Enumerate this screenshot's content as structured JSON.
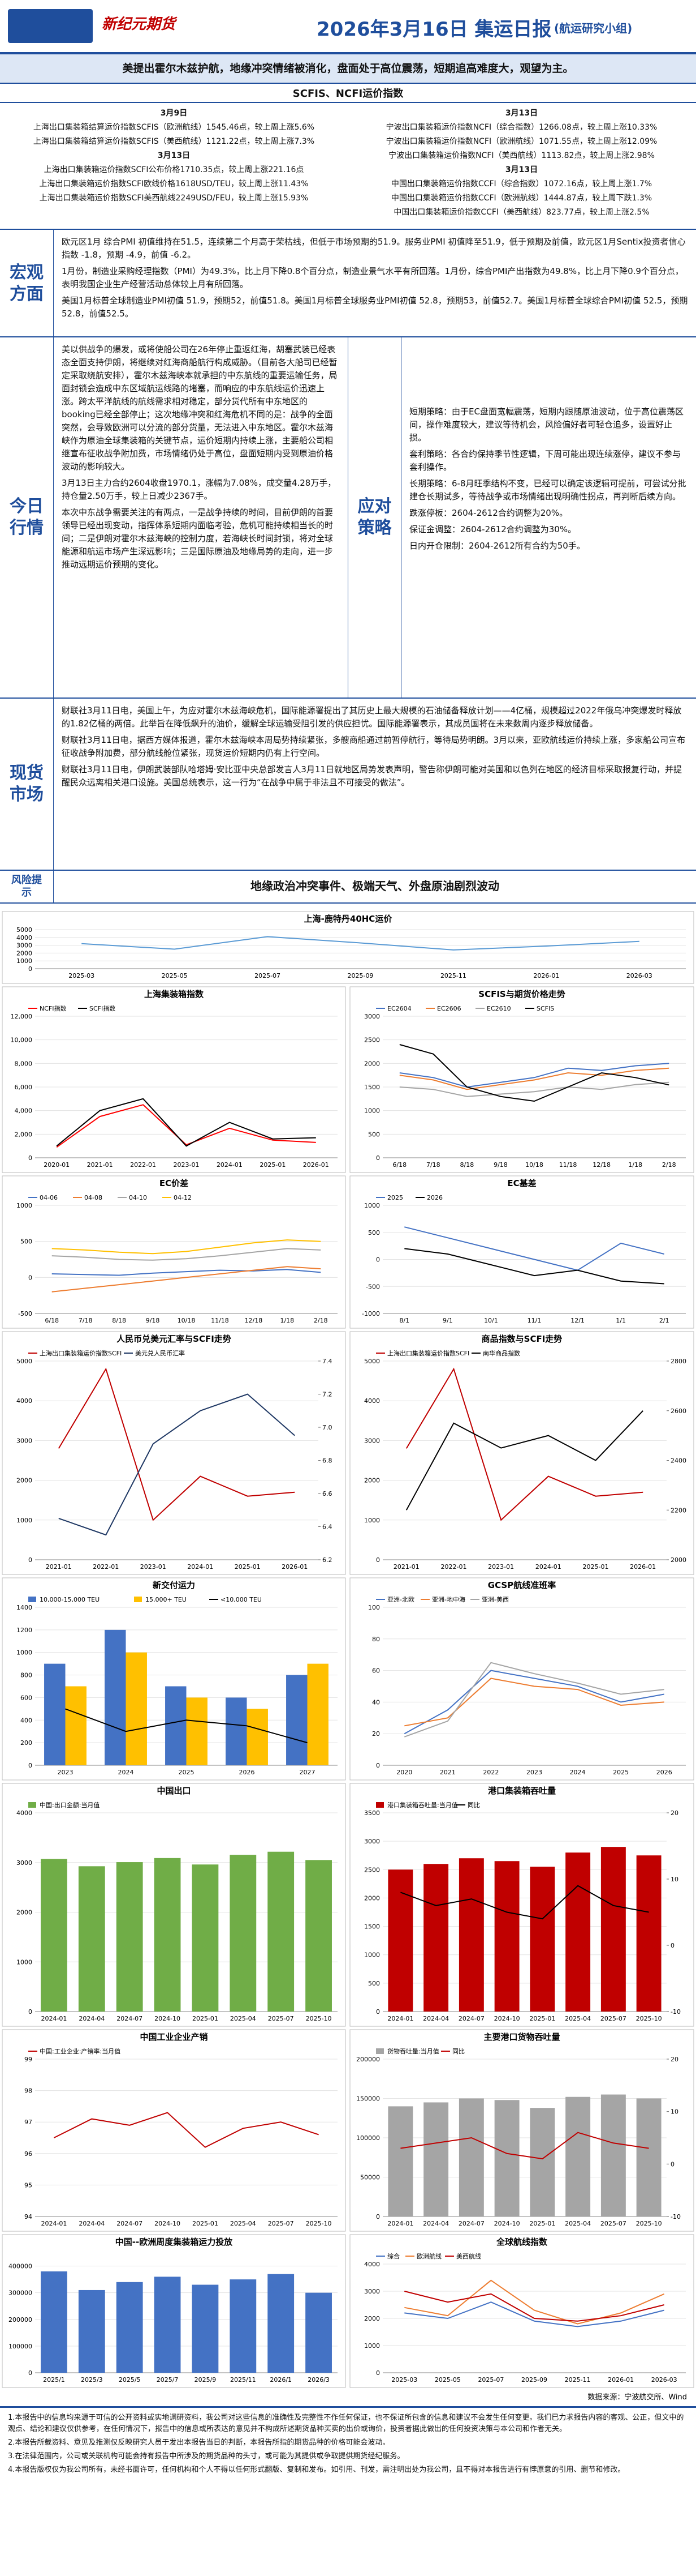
{
  "header": {
    "logo_text": "新纪元期货",
    "title": "2026年3月16日 集运日报",
    "group": "(航运研究小组)",
    "summary": "美提出霍尔木兹护航，地缘冲突情绪被消化，盘面处于高位震荡，短期追高难度大，观望为主。"
  },
  "index_panel": {
    "title": "SCFIS、NCFI运价指数",
    "left": [
      "3月9日",
      "上海出口集装箱结算运价指数SCFIS（欧洲航线）1545.46点，较上周上涨5.6%",
      "上海出口集装箱结算运价指数SCFIS（美西航线）1121.22点，较上周上涨7.3%",
      "3月13日",
      "上海出口集装箱运价指数SCFI公布价格1710.35点，较上周上涨221.16点",
      "上海出口集装箱运价指数SCFI欧线价格1618USD/TEU，较上周上涨11.43%",
      "上海出口集装箱运价指数SCFI美西航线2249USD/FEU，较上周上涨15.93%"
    ],
    "right": [
      "3月13日",
      "宁波出口集装箱运价指数NCFI（综合指数）1266.08点，较上周上涨10.33%",
      "宁波出口集装箱运价指数NCFI（欧洲航线）1071.55点，较上周上涨12.09%",
      "宁波出口集装箱运价指数NCFI（美西航线）1113.82点，较上周上涨2.98%",
      "3月13日",
      "中国出口集装箱运价指数CCFI（综合指数）1072.16点，较上周上涨1.7%",
      "中国出口集装箱运价指数CCFI（欧洲航线）1444.87点，较上周下跌1.3%",
      "中国出口集装箱运价指数CCFI（美西航线）823.77点，较上周上涨2.5%"
    ]
  },
  "macro": {
    "label": "宏观方面",
    "paragraphs": [
      "欧元区1月 综合PMI 初值维持在51.5，连续第二个月高于荣枯线，但低于市场预期的51.9。服务业PMI 初值降至51.9，低于预期及前值，欧元区1月Sentix投资者信心指数 -1.8，预期 -4.9，前值 -6.2。",
      "1月份，制造业采购经理指数（PMI）为49.3%，比上月下降0.8个百分点，制造业景气水平有所回落。1月份，综合PMI产出指数为49.8%，比上月下降0.9个百分点，表明我国企业生产经营活动总体较上月有所回落。",
      "美国1月标普全球制造业PMI初值 51.9，预期52，前值51.8。美国1月标普全球服务业PMI初值 52.8，预期53，前值52.7。美国1月标普全球综合PMI初值 52.5，预期52.8，前值52.5。"
    ]
  },
  "market": {
    "label": "今日行情",
    "paragraphs": [
      "美以供战争的爆发，或将使船公司在26年停止重返红海，胡塞武装已经表态全面支持伊朗，将继续对红海商船航行构成威胁。（目前各大船司已经暂定采取绕航安排），霍尔木兹海峡本就承担的中东航线的重要运输任务，局面封锁会造成中东区域航运线路的堵塞，而响应的中东航线运价迅速上涨。跨太平洋航线的航线需求相对稳定，部分货代所有中东地区的booking已经全部停止；这次地缘冲突和红海危机不同的是：战争的全面突然，会导致欧洲可以分流的部分货量，无法进入中东地区。霍尔木兹海峡作为原油全球集装箱的关键节点，运价短期内持续上涨，主要船公司相继宣布征收战争附加费，市场情绪仍处于高位，盘面短期内受到原油价格波动的影响较大。",
      "3月13日主力合约2604收盘1970.1，涨幅为7.08%，成交量4.28万手，持仓量2.50万手，较上日减少2367手。",
      "本次中东战争需要关注的有两点，一是战争持续的时间，目前伊朗的首要领导已经出现变动，指挥体系短期内面临考验，危机可能持续相当长的时间；二是伊朗对霍尔木兹海峡的控制力度，若海峡长时间封锁，将对全球能源和航运市场产生深远影响；三是国际原油及地缘局势的走向，进一步推动远期运价预期的变化。"
    ]
  },
  "strategy": {
    "label": "应对策略",
    "items": [
      "短期策略：由于EC盘面宽幅震荡，短期内跟随原油波动，位于高位震荡区间，操作难度较大，建议等待机会，风险偏好者可轻仓追多，设置好止损。",
      "套利策略：各合约保持季节性逻辑，下周可能出现连续涨停，建议不参与套利操作。",
      "长期策略：6-8月旺季结构不变，已经可以确定该逻辑可提前，可尝试分批建仓长期试多，等待战争或市场情绪出现明确性拐点，再判断后续方向。",
      "跌涨停板：2604-2612合约调整为20%。",
      "保证金调整：2604-2612合约调整为30%。",
      "日内开仓限制：2604-2612所有合约为50手。"
    ]
  },
  "spot": {
    "label": "现货市场",
    "paragraphs": [
      "财联社3月11日电，美国上午，为应对霍尔木兹海峡危机，国际能源署提出了其历史上最大规模的石油储备释放计划——4亿桶，规模超过2022年俄乌冲突爆发时释放的1.82亿桶的两倍。此举旨在降低飙升的油价，缓解全球运输受阻引发的供应担忧。国际能源署表示，其成员国将在未来数周内逐步释放储备。",
      "财联社3月11日电，据西方媒体报道，霍尔木兹海峡本周局势持续紧张，多艘商船通过前暂停航行，等待局势明朗。3月以来，亚欧航线运价持续上涨，多家船公司宣布征收战争附加费，部分航线舱位紧张，现货运价短期内仍有上行空间。",
      "财联社3月11日电，伊朗武装部队哈塔姆·安比亚中央总部发言人3月11日就地区局势发表声明，警告称伊朗可能对美国和以色列在地区的经济目标采取报复行动，并提醒民众远离相关港口设施。美国总统表示，这一行为“在战争中属于非法且不可接受的做法”。"
    ]
  },
  "risk": {
    "label": "风险提示",
    "text": "地缘政治冲突事件、极端天气、外盘原油剧烈波动"
  },
  "charts": [
    {
      "type": "line",
      "title": "上海-鹿特丹40HC运价",
      "categories": [
        "2025-03",
        "2025-05",
        "2025-07",
        "2025-09",
        "2025-11",
        "2026-01",
        "2026-03"
      ],
      "series": [
        {
          "color": "#5b9bd5",
          "values": [
            3200,
            2500,
            4100,
            3300,
            2400,
            2900,
            3500
          ]
        }
      ],
      "ylim": [
        0,
        5000
      ],
      "yticks": [
        0,
        1000,
        2000,
        3000,
        4000,
        5000
      ]
    },
    {
      "type": "line",
      "title": "上海集装箱指数",
      "categories": [
        "2020-01",
        "2021-01",
        "2022-01",
        "2023-01",
        "2024-01",
        "2025-01",
        "2026-01"
      ],
      "series": [
        {
          "name": "NCFI指数",
          "color": "#ff0000",
          "values": [
            900,
            3500,
            4500,
            1100,
            2500,
            1500,
            1300
          ]
        },
        {
          "name": "SCFI指数",
          "color": "#000000",
          "values": [
            1000,
            4000,
            5000,
            1000,
            3000,
            1600,
            1700
          ]
        }
      ],
      "ylim": [
        0,
        12000
      ],
      "yticks": [
        0,
        {
          "value": 2000,
          "label": "2,000"
        },
        {
          "value": 4000,
          "label": "4,000"
        },
        {
          "value": 6000,
          "label": "6,000"
        },
        {
          "value": 8000,
          "label": "8,000"
        },
        {
          "value": 10000,
          "label": "10,000"
        },
        {
          "value": 12000,
          "label": "12,000"
        }
      ]
    },
    {
      "type": "line",
      "title": "SCFIS与期货价格走势",
      "categories": [
        "6/18",
        "7/18",
        "8/18",
        "9/18",
        "10/18",
        "11/18",
        "12/18",
        "1/18",
        "2/18"
      ],
      "series": [
        {
          "name": "EC2604",
          "color": "#4472c4",
          "values": [
            1800,
            1700,
            1500,
            1600,
            1700,
            1900,
            1850,
            1950,
            2000
          ]
        },
        {
          "name": "EC2606",
          "color": "#ed7d31",
          "values": [
            1750,
            1650,
            1450,
            1550,
            1650,
            1800,
            1750,
            1850,
            1900
          ]
        },
        {
          "name": "EC2610",
          "color": "#a5a5a5",
          "values": [
            1500,
            1450,
            1300,
            1350,
            1400,
            1500,
            1450,
            1550,
            1600
          ]
        },
        {
          "name": "SCFIS",
          "color": "#000000",
          "values": [
            2400,
            2200,
            1500,
            1300,
            1200,
            1500,
            1800,
            1700,
            1545
          ]
        }
      ],
      "ylim": [
        0,
        3000
      ],
      "yticks": [
        0,
        500,
        1000,
        1500,
        2000,
        2500,
        3000
      ]
    },
    {
      "type": "line",
      "title": "EC价差",
      "categories": [
        "6/18",
        "7/18",
        "8/18",
        "9/18",
        "10/18",
        "11/18",
        "12/18",
        "1/18",
        "2/18"
      ],
      "series": [
        {
          "name": "04-06",
          "color": "#4472c4",
          "values": [
            50,
            40,
            30,
            60,
            80,
            100,
            90,
            110,
            70
          ]
        },
        {
          "name": "04-08",
          "color": "#ed7d31",
          "values": [
            -200,
            -150,
            -100,
            -50,
            0,
            50,
            100,
            150,
            120
          ]
        },
        {
          "name": "04-10",
          "color": "#a5a5a5",
          "values": [
            300,
            280,
            250,
            240,
            260,
            300,
            350,
            400,
            380
          ]
        },
        {
          "name": "04-12",
          "color": "#ffc000",
          "values": [
            400,
            380,
            350,
            330,
            360,
            420,
            480,
            520,
            500
          ]
        }
      ],
      "ylim": [
        -500,
        1000
      ],
      "yticks": [
        -500,
        0,
        500,
        1000
      ]
    },
    {
      "type": "line",
      "title": "EC基差",
      "categories": [
        "8/1",
        "9/1",
        "10/1",
        "11/1",
        "12/1",
        "1/1",
        "2/1"
      ],
      "series": [
        {
          "name": "2025",
          "color": "#4472c4",
          "values": [
            600,
            400,
            200,
            0,
            -200,
            300,
            100
          ]
        },
        {
          "name": "2026",
          "color": "#000000",
          "values": [
            200,
            100,
            -100,
            -300,
            -200,
            -400,
            -450
          ]
        }
      ],
      "ylim": [
        -1000,
        1000
      ],
      "yticks": [
        -1000,
        -500,
        0,
        500,
        1000
      ]
    },
    {
      "type": "line",
      "title": "人民币兑美元汇率与SCFI走势",
      "categories": [
        "2021-01",
        "2022-01",
        "2023-01",
        "2024-01",
        "2025-01",
        "2026-01"
      ],
      "series": [
        {
          "name": "上海出口集装箱运价指数SCFI",
          "color": "#c00000",
          "values": [
            2800,
            4800,
            1000,
            2100,
            1600,
            1700
          ]
        },
        {
          "name": "美元兑人民币汇率",
          "color": "#1f3864",
          "axis": "y2",
          "values": [
            6.45,
            6.35,
            6.9,
            7.1,
            7.2,
            6.95
          ]
        }
      ],
      "ylim": [
        0,
        5000
      ],
      "yticks": [
        0,
        1000,
        2000,
        3000,
        4000,
        5000
      ],
      "y2lim": [
        6.2,
        7.4
      ],
      "y2ticks": [
        6.2,
        6.4,
        6.6,
        6.8,
        {
          "value": 7,
          "label": "7.0"
        },
        7.2,
        7.4
      ]
    },
    {
      "type": "line",
      "title": "商品指数与SCFI走势",
      "categories": [
        "2021-01",
        "2022-01",
        "2023-01",
        "2024-01",
        "2025-01",
        "2026-01"
      ],
      "series": [
        {
          "name": "上海出口集装箱运价指数SCFI",
          "color": "#c00000",
          "values": [
            2800,
            4800,
            1000,
            2100,
            1600,
            1700
          ]
        },
        {
          "name": "南华商品指数",
          "color": "#000000",
          "axis": "y2",
          "values": [
            2200,
            2550,
            2450,
            2500,
            2400,
            2600
          ]
        }
      ],
      "ylim": [
        0,
        5000
      ],
      "yticks": [
        0,
        1000,
        2000,
        3000,
        4000,
        5000
      ],
      "y2lim": [
        2000,
        2800
      ],
      "y2ticks": [
        2000,
        2200,
        2400,
        2600,
        2800
      ]
    },
    {
      "type": "combo",
      "title": "新交付运力",
      "categories": [
        "2023",
        "2024",
        "2025",
        "2026",
        "2027"
      ],
      "series": [
        {
          "name": "10,000-15,000 TEU",
          "color": "#4472c4",
          "type": "bar",
          "values": [
            900,
            1200,
            700,
            600,
            800
          ]
        },
        {
          "name": "15,000+ TEU",
          "color": "#ffc000",
          "type": "bar",
          "values": [
            700,
            1000,
            600,
            500,
            900
          ]
        },
        {
          "name": "<10,000 TEU",
          "color": "#000000",
          "type": "line",
          "values": [
            500,
            300,
            400,
            350,
            200
          ]
        }
      ],
      "ylim": [
        0,
        1400
      ],
      "yticks": [
        0,
        200,
        400,
        600,
        800,
        1000,
        1200,
        1400
      ]
    },
    {
      "type": "line",
      "title": "GCSP航线准班率",
      "categories": [
        "2020",
        "2021",
        "2022",
        "2023",
        "2024",
        "2025",
        "2026"
      ],
      "series": [
        {
          "name": "亚洲-北欧",
          "color": "#4472c4",
          "values": [
            20,
            35,
            60,
            55,
            50,
            40,
            45
          ]
        },
        {
          "name": "亚洲-地中海",
          "color": "#ed7d31",
          "values": [
            25,
            30,
            55,
            50,
            48,
            38,
            40
          ]
        },
        {
          "name": "亚洲-美西",
          "color": "#a5a5a5",
          "values": [
            18,
            28,
            65,
            58,
            52,
            45,
            48
          ]
        }
      ],
      "ylim": [
        0,
        100
      ],
      "yticks": [
        0,
        20,
        40,
        60,
        80,
        100
      ]
    },
    {
      "type": "bar",
      "title": "中国出口",
      "categories": [
        "2024-01",
        "2024-04",
        "2024-07",
        "2024-10",
        "2025-01",
        "2025-04",
        "2025-07",
        "2025-10"
      ],
      "series": [
        {
          "name": "中国:出口金额:当月值",
          "color": "#70ad47",
          "values": [
            3070,
            2925,
            3008,
            3090,
            2960,
            3155,
            3217,
            3050
          ]
        }
      ],
      "ylim": [
        0,
        4000
      ],
      "yticks": [
        0,
        1000,
        2000,
        3000,
        4000
      ]
    },
    {
      "type": "combo",
      "title": "港口集装箱吞吐量",
      "categories": [
        "2024-01",
        "2024-04",
        "2024-07",
        "2024-10",
        "2025-01",
        "2025-04",
        "2025-07",
        "2025-10"
      ],
      "series": [
        {
          "name": "港口集装箱吞吐量:当月值",
          "color": "#c00000",
          "type": "bar",
          "values": [
            2500,
            2600,
            2700,
            2650,
            2550,
            2800,
            2900,
            2750
          ]
        },
        {
          "name": "同比",
          "color": "#000000",
          "type": "line",
          "axis": "y2",
          "values": [
            8,
            6,
            7,
            5,
            4,
            9,
            6,
            5
          ]
        }
      ],
      "ylim": [
        0,
        3500
      ],
      "yticks": [
        0,
        500,
        1000,
        1500,
        2000,
        2500,
        3000,
        3500
      ],
      "y2lim": [
        -10,
        20
      ],
      "y2ticks": [
        -10,
        0,
        10,
        20
      ]
    },
    {
      "type": "line",
      "title": "中国工业企业产销",
      "categories": [
        "2024-01",
        "2024-04",
        "2024-07",
        "2024-10",
        "2025-01",
        "2025-04",
        "2025-07",
        "2025-10"
      ],
      "series": [
        {
          "name": "中国:工业企业:产销率:当月值",
          "color": "#c00000",
          "values": [
            96.5,
            97.1,
            96.9,
            97.3,
            96.2,
            96.8,
            97,
            96.6
          ]
        }
      ],
      "ylim": [
        94,
        99
      ],
      "yticks": [
        94,
        95,
        96,
        97,
        98,
        99
      ]
    },
    {
      "type": "combo",
      "title": "主要港口货物吞吐量",
      "categories": [
        "2024-01",
        "2024-04",
        "2024-07",
        "2024-10",
        "2025-01",
        "2025-04",
        "2025-07",
        "2025-10"
      ],
      "series": [
        {
          "name": "货物吞吐量:当月值",
          "color": "#a5a5a5",
          "type": "bar",
          "values": [
            140000,
            145000,
            150000,
            148000,
            138000,
            152000,
            155000,
            150000
          ]
        },
        {
          "name": "同比",
          "color": "#c00000",
          "type": "line",
          "axis": "y2",
          "values": [
            3,
            4,
            5,
            2,
            1,
            6,
            4,
            3
          ]
        }
      ],
      "ylim": [
        0,
        200000
      ],
      "yticks": [
        0,
        50000,
        100000,
        150000,
        200000
      ],
      "y2lim": [
        -10,
        20
      ],
      "y2ticks": [
        -10,
        0,
        10,
        20
      ]
    },
    {
      "type": "bar",
      "title": "中国--欧洲周度集装箱运力投放",
      "categories": [
        "2025/1",
        "2025/3",
        "2025/5",
        "2025/7",
        "2025/9",
        "2025/11",
        "2026/1",
        "2026/3"
      ],
      "series": [
        {
          "color": "#4472c4",
          "values": [
            380000,
            310000,
            340000,
            360000,
            330000,
            350000,
            370000,
            300000
          ]
        }
      ],
      "ylim": [
        0,
        450000
      ],
      "yticks": [
        0,
        100000,
        200000,
        300000,
        400000
      ]
    },
    {
      "type": "line",
      "title": "全球航线指数",
      "categories": [
        "2025-03",
        "2025-05",
        "2025-07",
        "2025-09",
        "2025-11",
        "2026-01",
        "2026-03"
      ],
      "series": [
        {
          "name": "综合",
          "color": "#4472c4",
          "values": [
            2200,
            2000,
            2600,
            1900,
            1700,
            1900,
            2300
          ]
        },
        {
          "name": "欧洲航线",
          "color": "#ed7d31",
          "values": [
            2400,
            2100,
            3400,
            2300,
            1800,
            2200,
            2900
          ]
        },
        {
          "name": "美西航线",
          "color": "#c00000",
          "values": [
            3000,
            2600,
            2900,
            2000,
            1900,
            2100,
            2500
          ]
        }
      ],
      "ylim": [
        0,
        4000
      ],
      "yticks": [
        0,
        1000,
        2000,
        3000,
        4000
      ]
    }
  ],
  "source": "数据来源：宁波航交所、Wind",
  "disclaimer": [
    "1.本报告中的信息均来源于可信的公开资料或实地调研资料，我公司对这些信息的准确性及完整性不作任何保证，也不保证所包含的信息和建议不会发生任何变更。我们已力求报告内容的客观、公正，但文中的观点、结论和建议仅供参考，在任何情况下，报告中的信息或所表达的意见并不构成所述期货品种买卖的出价或询价，投资者据此做出的任何投资决策与本公司和作者无关。",
    "2.本报告所载资料、意见及推测仅反映研究人员于发出本报告当日的判断，本报告所指的期货品种的价格可能会波动。",
    "3.在法律范围内，公司或关联机构可能会持有报告中所涉及的期货品种的头寸，或可能为其提供或争取提供期货经纪服务。",
    "4.本报告版权仅为我公司所有，未经书面许可，任何机构和个人不得以任何形式翻版、复制和发布。如引用、刊发，需注明出处为我公司，且不得对本报告进行有悖原意的引用、删节和修改。"
  ]
}
